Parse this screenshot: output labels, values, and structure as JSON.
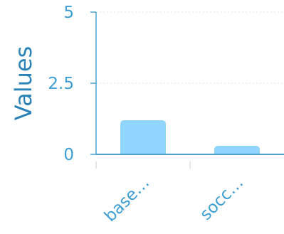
{
  "chart_data": {
    "type": "bar",
    "categories": [
      "base…",
      "socc…"
    ],
    "values": [
      1.2,
      0.3
    ],
    "title": "",
    "xlabel": "",
    "ylabel": "Values",
    "ylim": [
      0,
      5
    ],
    "y_ticks": [
      "0",
      "2.5",
      "5"
    ],
    "grid": true,
    "legend": "none",
    "colors": {
      "bar": "#90d5fd",
      "axis": "#4aa3cf",
      "grid": "#d9e6ef",
      "tick_text": "#3e9fd4",
      "title_text": "#2a82b6"
    }
  }
}
